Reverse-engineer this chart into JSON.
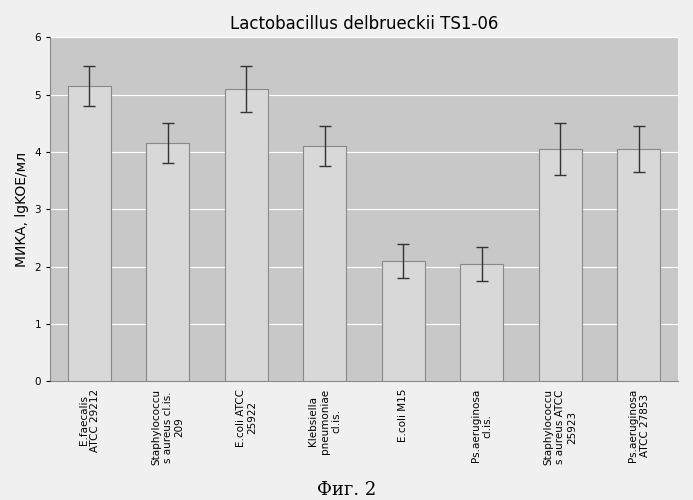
{
  "title": "Lactobacillus delbrueckii TS1-06",
  "ylabel": "МИКА, lgKOE/мл",
  "categories": [
    "E.faecalis\nATCC 29212",
    "Staphylococcu\ns aureus cl.is.\n209",
    "E.coli ATCC\n25922",
    "Klebsiella\npneumoniae\ncl.is.",
    "E.coli M15",
    "Ps.aeruginosa\ncl.is.",
    "Staphylococcu\ns aureus ATCC\n25923",
    "Ps.aeruginosa\nATCC 27853"
  ],
  "values": [
    5.15,
    4.15,
    5.1,
    4.1,
    2.1,
    2.05,
    4.05,
    4.05
  ],
  "errors": [
    0.35,
    0.35,
    0.4,
    0.35,
    0.3,
    0.3,
    0.45,
    0.4
  ],
  "ylim": [
    0,
    6
  ],
  "yticks": [
    0,
    1,
    2,
    3,
    4,
    5,
    6
  ],
  "bar_color": "#d8d8d8",
  "bar_edge_color": "#888888",
  "error_color": "#333333",
  "plot_bg_color": "#c8c8c8",
  "fig_bg_color": "#f0f0f0",
  "grid_color": "#ffffff",
  "caption": "Фиг. 2",
  "title_fontsize": 12,
  "ylabel_fontsize": 10,
  "tick_fontsize": 7.5,
  "caption_fontsize": 13
}
